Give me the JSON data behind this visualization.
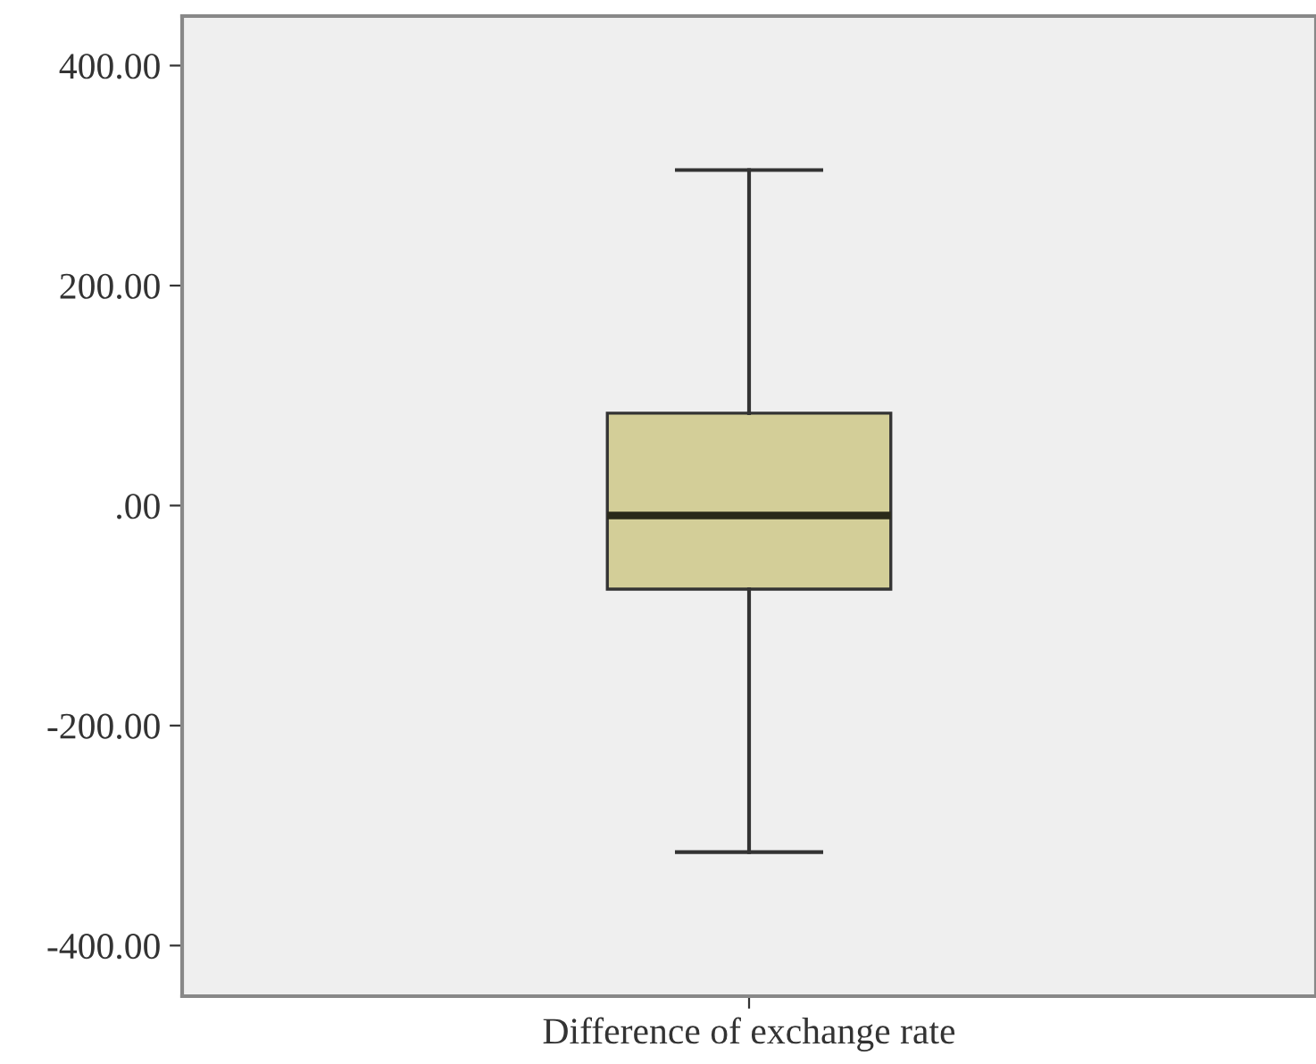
{
  "chart_data": {
    "type": "box",
    "categories": [
      "Difference of exchange rate"
    ],
    "boxes": [
      {
        "low": -315,
        "q1": -76,
        "median": -9,
        "q3": 84,
        "high": 305
      }
    ],
    "color": "#d3ce98",
    "ylim": [
      -446,
      445
    ],
    "yticks": [
      {
        "value": -400,
        "label": "-400.00"
      },
      {
        "value": -200,
        "label": "-200.00"
      },
      {
        "value": 0,
        "label": ".00"
      },
      {
        "value": 200,
        "label": "200.00"
      },
      {
        "value": 400,
        "label": "400.00"
      }
    ],
    "grid": false,
    "legend": false
  }
}
